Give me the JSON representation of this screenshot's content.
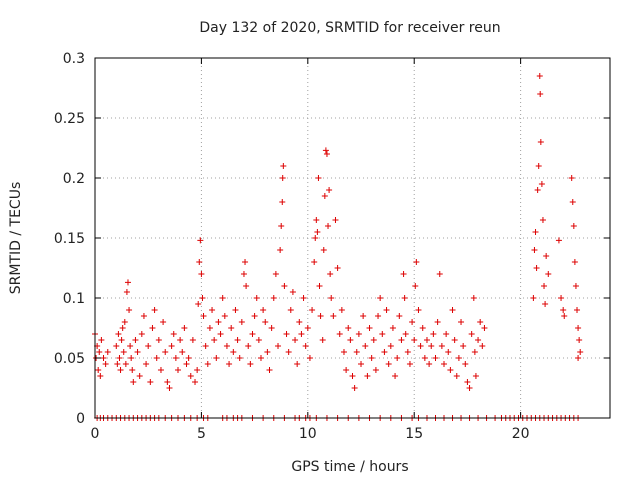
{
  "chart_data": {
    "type": "scatter",
    "title": "Day 132 of 2020, SRMTID for receiver reun",
    "xlabel": "GPS time / hours",
    "ylabel": "SRMTID / TECUs",
    "xlim": [
      0,
      24.2
    ],
    "ylim": [
      0,
      0.3
    ],
    "x_ticks": [
      0,
      5,
      10,
      15,
      20
    ],
    "x_tick_labels": [
      "0",
      "5",
      "10",
      "15",
      "20"
    ],
    "y_ticks": [
      0,
      0.05,
      0.1,
      0.15,
      0.2,
      0.25,
      0.3
    ],
    "y_tick_labels": [
      "0",
      "0.05",
      "0.1",
      "0.15",
      "0.2",
      "0.25",
      "0.3"
    ],
    "grid": true,
    "marker": "plus",
    "color": "#dd0000",
    "series": [
      {
        "name": "SRMTID",
        "points": [
          [
            0.0,
            0.07
          ],
          [
            0.05,
            0.05
          ],
          [
            0.1,
            0.06
          ],
          [
            0.15,
            0.04
          ],
          [
            0.2,
            0.055
          ],
          [
            0.25,
            0.035
          ],
          [
            0.3,
            0.065
          ],
          [
            0.4,
            0.05
          ],
          [
            0.5,
            0.045
          ],
          [
            0.6,
            0.055
          ],
          [
            1.0,
            0.06
          ],
          [
            1.05,
            0.045
          ],
          [
            1.1,
            0.07
          ],
          [
            1.15,
            0.05
          ],
          [
            1.2,
            0.04
          ],
          [
            1.25,
            0.065
          ],
          [
            1.3,
            0.075
          ],
          [
            1.35,
            0.055
          ],
          [
            1.4,
            0.08
          ],
          [
            1.45,
            0.045
          ],
          [
            1.5,
            0.105
          ],
          [
            1.55,
            0.113
          ],
          [
            1.6,
            0.09
          ],
          [
            1.65,
            0.06
          ],
          [
            1.7,
            0.05
          ],
          [
            1.75,
            0.04
          ],
          [
            1.8,
            0.03
          ],
          [
            1.9,
            0.065
          ],
          [
            2.0,
            0.055
          ],
          [
            2.1,
            0.035
          ],
          [
            2.2,
            0.07
          ],
          [
            2.3,
            0.085
          ],
          [
            2.4,
            0.045
          ],
          [
            2.5,
            0.06
          ],
          [
            2.6,
            0.03
          ],
          [
            2.7,
            0.075
          ],
          [
            2.8,
            0.09
          ],
          [
            2.9,
            0.05
          ],
          [
            3.0,
            0.065
          ],
          [
            3.1,
            0.04
          ],
          [
            3.2,
            0.08
          ],
          [
            3.3,
            0.055
          ],
          [
            3.4,
            0.03
          ],
          [
            3.5,
            0.025
          ],
          [
            3.6,
            0.06
          ],
          [
            3.7,
            0.07
          ],
          [
            3.8,
            0.05
          ],
          [
            3.9,
            0.04
          ],
          [
            4.0,
            0.065
          ],
          [
            4.1,
            0.055
          ],
          [
            4.2,
            0.075
          ],
          [
            4.3,
            0.045
          ],
          [
            4.4,
            0.05
          ],
          [
            4.5,
            0.035
          ],
          [
            4.6,
            0.065
          ],
          [
            4.7,
            0.03
          ],
          [
            4.8,
            0.04
          ],
          [
            4.85,
            0.095
          ],
          [
            4.9,
            0.13
          ],
          [
            4.95,
            0.148
          ],
          [
            5.0,
            0.12
          ],
          [
            5.05,
            0.1
          ],
          [
            5.1,
            0.085
          ],
          [
            5.2,
            0.06
          ],
          [
            5.3,
            0.045
          ],
          [
            5.4,
            0.075
          ],
          [
            5.5,
            0.09
          ],
          [
            5.6,
            0.065
          ],
          [
            5.7,
            0.05
          ],
          [
            5.8,
            0.08
          ],
          [
            5.9,
            0.07
          ],
          [
            6.0,
            0.1
          ],
          [
            6.1,
            0.085
          ],
          [
            6.2,
            0.06
          ],
          [
            6.3,
            0.045
          ],
          [
            6.4,
            0.075
          ],
          [
            6.5,
            0.055
          ],
          [
            6.6,
            0.09
          ],
          [
            6.7,
            0.065
          ],
          [
            6.8,
            0.05
          ],
          [
            6.9,
            0.08
          ],
          [
            7.0,
            0.12
          ],
          [
            7.05,
            0.13
          ],
          [
            7.1,
            0.11
          ],
          [
            7.2,
            0.06
          ],
          [
            7.3,
            0.045
          ],
          [
            7.4,
            0.07
          ],
          [
            7.5,
            0.085
          ],
          [
            7.6,
            0.1
          ],
          [
            7.7,
            0.065
          ],
          [
            7.8,
            0.05
          ],
          [
            7.9,
            0.09
          ],
          [
            8.0,
            0.08
          ],
          [
            8.1,
            0.055
          ],
          [
            8.2,
            0.04
          ],
          [
            8.3,
            0.075
          ],
          [
            8.4,
            0.1
          ],
          [
            8.5,
            0.12
          ],
          [
            8.6,
            0.06
          ],
          [
            8.7,
            0.14
          ],
          [
            8.75,
            0.16
          ],
          [
            8.8,
            0.18
          ],
          [
            8.82,
            0.2
          ],
          [
            8.85,
            0.21
          ],
          [
            8.9,
            0.11
          ],
          [
            9.0,
            0.07
          ],
          [
            9.1,
            0.055
          ],
          [
            9.2,
            0.09
          ],
          [
            9.3,
            0.105
          ],
          [
            9.4,
            0.065
          ],
          [
            9.5,
            0.045
          ],
          [
            9.6,
            0.08
          ],
          [
            9.7,
            0.07
          ],
          [
            9.8,
            0.1
          ],
          [
            9.9,
            0.06
          ],
          [
            10.0,
            0.075
          ],
          [
            10.1,
            0.05
          ],
          [
            10.2,
            0.09
          ],
          [
            10.3,
            0.13
          ],
          [
            10.35,
            0.15
          ],
          [
            10.4,
            0.165
          ],
          [
            10.45,
            0.155
          ],
          [
            10.5,
            0.2
          ],
          [
            10.55,
            0.11
          ],
          [
            10.6,
            0.085
          ],
          [
            10.7,
            0.065
          ],
          [
            10.75,
            0.14
          ],
          [
            10.8,
            0.185
          ],
          [
            10.85,
            0.223
          ],
          [
            10.9,
            0.22
          ],
          [
            10.95,
            0.16
          ],
          [
            11.0,
            0.19
          ],
          [
            11.05,
            0.12
          ],
          [
            11.1,
            0.1
          ],
          [
            11.2,
            0.085
          ],
          [
            11.3,
            0.165
          ],
          [
            11.4,
            0.125
          ],
          [
            11.5,
            0.07
          ],
          [
            11.6,
            0.09
          ],
          [
            11.7,
            0.055
          ],
          [
            11.8,
            0.04
          ],
          [
            11.9,
            0.075
          ],
          [
            12.0,
            0.065
          ],
          [
            12.1,
            0.035
          ],
          [
            12.2,
            0.025
          ],
          [
            12.3,
            0.055
          ],
          [
            12.4,
            0.07
          ],
          [
            12.5,
            0.045
          ],
          [
            12.6,
            0.085
          ],
          [
            12.7,
            0.06
          ],
          [
            12.8,
            0.035
          ],
          [
            12.9,
            0.075
          ],
          [
            13.0,
            0.05
          ],
          [
            13.1,
            0.065
          ],
          [
            13.2,
            0.04
          ],
          [
            13.3,
            0.085
          ],
          [
            13.4,
            0.1
          ],
          [
            13.5,
            0.07
          ],
          [
            13.6,
            0.055
          ],
          [
            13.7,
            0.09
          ],
          [
            13.8,
            0.045
          ],
          [
            13.9,
            0.06
          ],
          [
            14.0,
            0.075
          ],
          [
            14.1,
            0.035
          ],
          [
            14.2,
            0.05
          ],
          [
            14.3,
            0.085
          ],
          [
            14.4,
            0.065
          ],
          [
            14.5,
            0.12
          ],
          [
            14.55,
            0.1
          ],
          [
            14.6,
            0.07
          ],
          [
            14.7,
            0.055
          ],
          [
            14.8,
            0.045
          ],
          [
            14.9,
            0.08
          ],
          [
            15.0,
            0.065
          ],
          [
            15.05,
            0.11
          ],
          [
            15.1,
            0.13
          ],
          [
            15.2,
            0.09
          ],
          [
            15.3,
            0.06
          ],
          [
            15.4,
            0.075
          ],
          [
            15.5,
            0.05
          ],
          [
            15.6,
            0.065
          ],
          [
            15.7,
            0.045
          ],
          [
            15.8,
            0.06
          ],
          [
            15.9,
            0.07
          ],
          [
            16.0,
            0.05
          ],
          [
            16.1,
            0.08
          ],
          [
            16.2,
            0.12
          ],
          [
            16.3,
            0.06
          ],
          [
            16.4,
            0.045
          ],
          [
            16.5,
            0.07
          ],
          [
            16.6,
            0.055
          ],
          [
            16.7,
            0.04
          ],
          [
            16.8,
            0.09
          ],
          [
            16.9,
            0.065
          ],
          [
            17.0,
            0.035
          ],
          [
            17.1,
            0.05
          ],
          [
            17.2,
            0.08
          ],
          [
            17.3,
            0.06
          ],
          [
            17.4,
            0.045
          ],
          [
            17.5,
            0.03
          ],
          [
            17.6,
            0.025
          ],
          [
            17.7,
            0.07
          ],
          [
            17.8,
            0.1
          ],
          [
            17.85,
            0.055
          ],
          [
            17.9,
            0.035
          ],
          [
            18.0,
            0.065
          ],
          [
            18.1,
            0.08
          ],
          [
            18.2,
            0.06
          ],
          [
            18.3,
            0.075
          ],
          [
            20.6,
            0.1
          ],
          [
            20.65,
            0.14
          ],
          [
            20.7,
            0.155
          ],
          [
            20.75,
            0.125
          ],
          [
            20.8,
            0.19
          ],
          [
            20.85,
            0.21
          ],
          [
            20.9,
            0.285
          ],
          [
            20.92,
            0.27
          ],
          [
            20.95,
            0.23
          ],
          [
            21.0,
            0.195
          ],
          [
            21.05,
            0.165
          ],
          [
            21.1,
            0.11
          ],
          [
            21.15,
            0.095
          ],
          [
            21.2,
            0.135
          ],
          [
            21.3,
            0.12
          ],
          [
            21.8,
            0.148
          ],
          [
            21.9,
            0.1
          ],
          [
            22.0,
            0.09
          ],
          [
            22.05,
            0.085
          ],
          [
            22.4,
            0.2
          ],
          [
            22.45,
            0.18
          ],
          [
            22.5,
            0.16
          ],
          [
            22.55,
            0.13
          ],
          [
            22.6,
            0.11
          ],
          [
            22.65,
            0.09
          ],
          [
            22.7,
            0.075
          ],
          [
            22.75,
            0.065
          ],
          [
            22.8,
            0.055
          ],
          [
            22.7,
            0.05
          ]
        ],
        "zeros": [
          0.1,
          0.25,
          0.4,
          0.6,
          0.8,
          1.0,
          1.2,
          1.4,
          1.6,
          1.8,
          2.0,
          2.2,
          2.4,
          2.6,
          2.8,
          3.0,
          3.3,
          3.6,
          3.9,
          4.2,
          4.5,
          4.8,
          5.1,
          5.3,
          6.0,
          6.2,
          6.5,
          6.7,
          6.9,
          7.4,
          7.9,
          8.4,
          8.9,
          9.4,
          9.6,
          9.9,
          10.1,
          10.4,
          10.9,
          11.4,
          11.9,
          12.4,
          12.9,
          13.4,
          13.9,
          14.4,
          14.9,
          15.2,
          15.6,
          16.0,
          16.4,
          16.8,
          17.2,
          17.6,
          18.0,
          18.4,
          18.8,
          19.1,
          19.3,
          19.5,
          19.7,
          19.9,
          20.1,
          20.3,
          20.5,
          20.7,
          20.9,
          21.1,
          21.3,
          21.5,
          21.7,
          21.9,
          22.1,
          22.3,
          22.5,
          22.7
        ]
      }
    ]
  }
}
